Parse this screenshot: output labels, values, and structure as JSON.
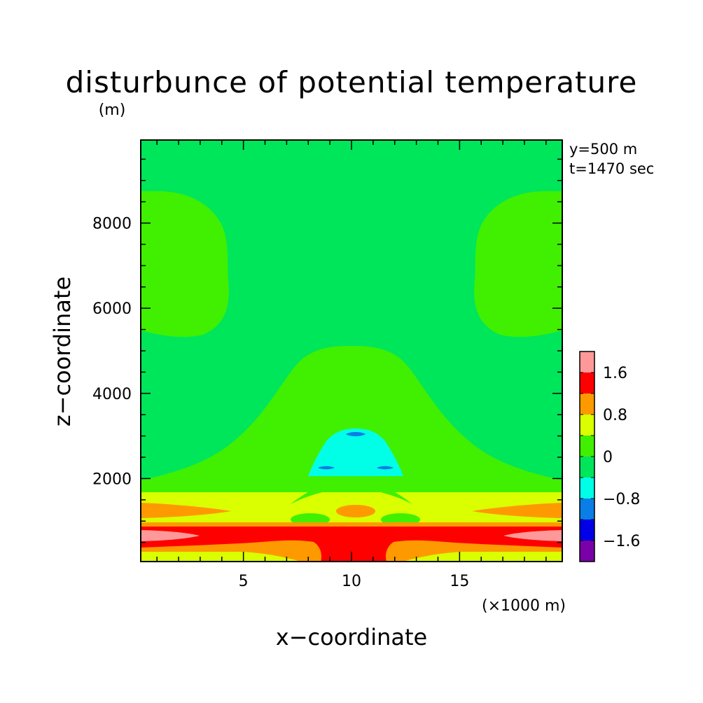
{
  "chart_data": {
    "type": "heatmap",
    "title": "disturbunce of potential temperature",
    "y_unit": "(m)",
    "x_unit": "(×1000 m)",
    "xlabel": "x−coordinate",
    "ylabel": "z−coordinate",
    "annotations": [
      "y=500 m",
      "t=1470 sec"
    ],
    "xlim": [
      0.25,
      19.75
    ],
    "ylim": [
      50,
      9950
    ],
    "x_ticks": [
      5,
      10,
      15
    ],
    "y_ticks": [
      2000,
      4000,
      6000,
      8000
    ],
    "x_tick_labels": [
      "5",
      "10",
      "15"
    ],
    "y_tick_labels": [
      "2000",
      "4000",
      "6000",
      "8000"
    ],
    "colorbar": {
      "levels": [
        -2.0,
        -1.6,
        -1.2,
        -0.8,
        -0.4,
        0,
        0.4,
        0.8,
        1.2,
        1.6,
        2.0
      ],
      "colors": [
        "#7a00a8",
        "#0000e6",
        "#0a7de6",
        "#00ffe6",
        "#00e65a",
        "#40f000",
        "#d9ff00",
        "#ff9900",
        "#ff0000",
        "#ff9999"
      ],
      "tick_labels": [
        "1.6",
        "0.8",
        "0",
        "−0.8",
        "−1.6"
      ]
    }
  }
}
